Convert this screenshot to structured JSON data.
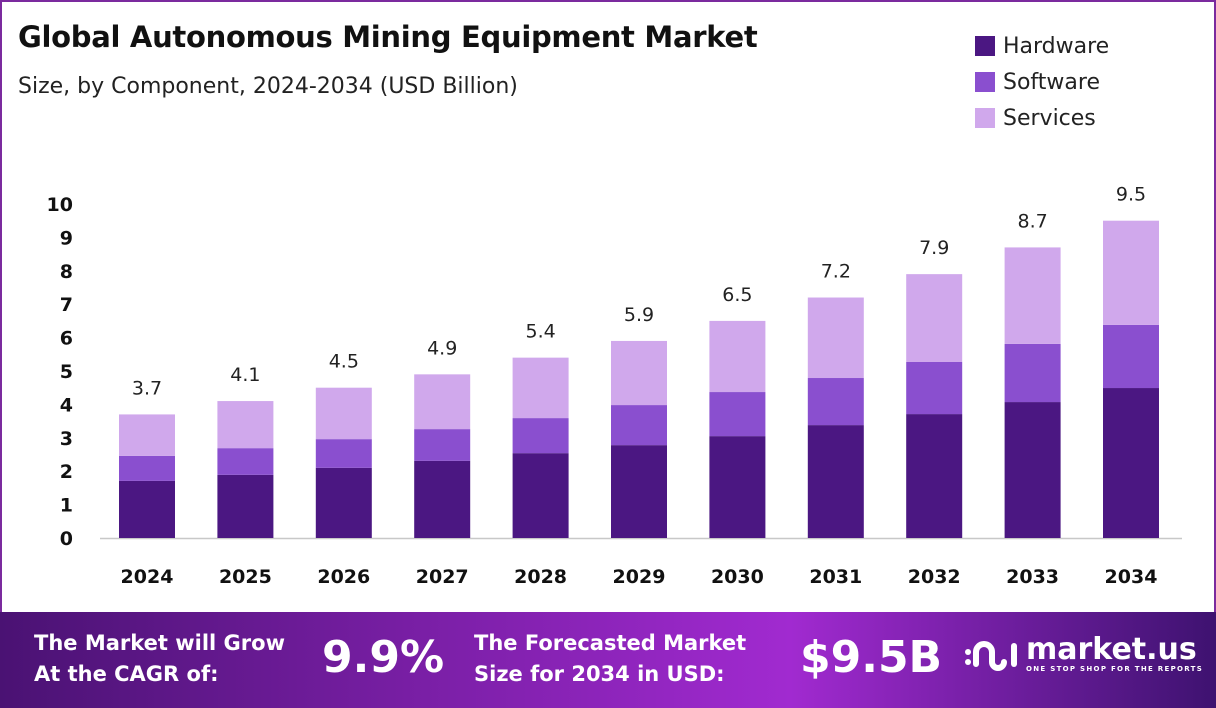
{
  "chart_data": {
    "type": "bar",
    "stacked": true,
    "title": "Global Autonomous Mining Equipment Market",
    "subtitle": "Size, by Component, 2024-2034 (USD Billion)",
    "xlabel": "",
    "ylabel": "",
    "ylim": [
      0,
      10
    ],
    "yticks": [
      0,
      1,
      2,
      3,
      4,
      5,
      6,
      7,
      8,
      9,
      10
    ],
    "grid": false,
    "legend_position": "top-right",
    "categories": [
      "2024",
      "2025",
      "2026",
      "2027",
      "2028",
      "2029",
      "2030",
      "2031",
      "2032",
      "2033",
      "2034"
    ],
    "series": [
      {
        "name": "Hardware",
        "color": "#4b1782",
        "values": [
          1.71,
          1.89,
          2.1,
          2.31,
          2.54,
          2.78,
          3.05,
          3.38,
          3.71,
          4.07,
          4.49
        ]
      },
      {
        "name": "Software",
        "color": "#8a4fcf",
        "values": [
          0.75,
          0.8,
          0.86,
          0.95,
          1.05,
          1.2,
          1.32,
          1.41,
          1.56,
          1.74,
          1.89
        ]
      },
      {
        "name": "Services",
        "color": "#d0a8ec",
        "values": [
          1.24,
          1.41,
          1.54,
          1.64,
          1.81,
          1.92,
          2.13,
          2.41,
          2.63,
          2.89,
          3.12
        ]
      }
    ],
    "totals": [
      "3.7",
      "4.1",
      "4.5",
      "4.9",
      "5.4",
      "5.9",
      "6.5",
      "7.2",
      "7.9",
      "8.7",
      "9.5"
    ]
  },
  "footer": {
    "cagr_label_1": "The Market will Grow",
    "cagr_label_2": "At the CAGR of:",
    "cagr_value": "9.9%",
    "forecast_label_1": "The Forecasted Market",
    "forecast_label_2": "Size for 2034 in USD:",
    "forecast_value": "$9.5B",
    "logo_text": "market.us",
    "logo_tagline": "ONE STOP SHOP FOR THE REPORTS"
  }
}
